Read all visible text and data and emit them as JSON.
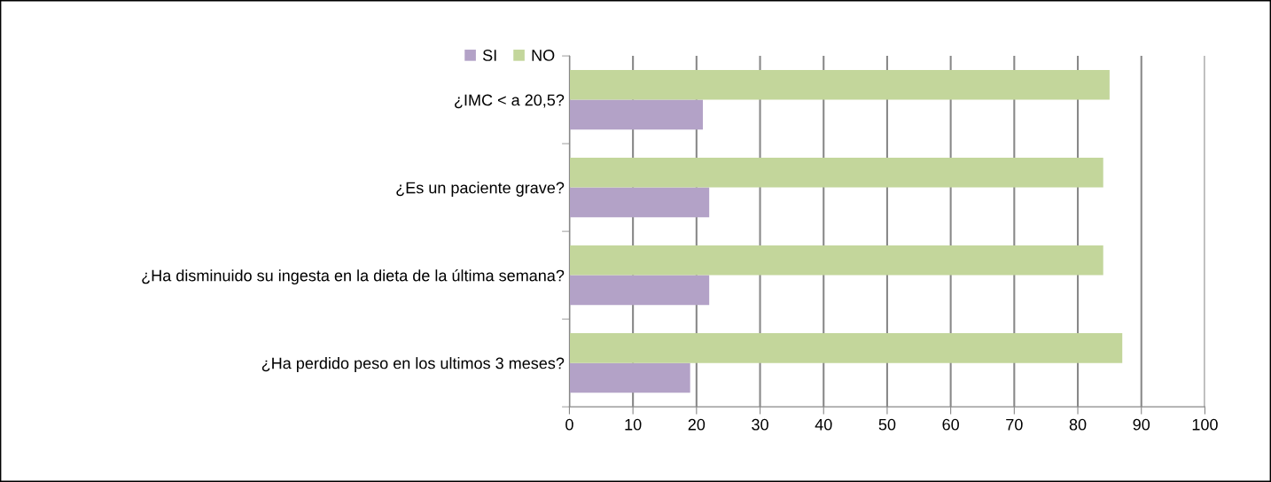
{
  "chart_data": {
    "type": "bar",
    "orientation": "horizontal",
    "categories": [
      "¿IMC < a 20,5?",
      "¿Es un paciente grave?",
      "¿Ha disminuido su ingesta en la dieta de la última semana?",
      "¿Ha perdido peso en los ultimos 3 meses?"
    ],
    "series": [
      {
        "name": "SI",
        "color": "#b3a2c7",
        "values": [
          21,
          22,
          22,
          19
        ]
      },
      {
        "name": "NO",
        "color": "#c3d69b",
        "values": [
          85,
          84,
          84,
          87
        ]
      }
    ],
    "xlim": [
      0,
      100
    ],
    "xticks": [
      0,
      10,
      20,
      30,
      40,
      50,
      60,
      70,
      80,
      90,
      100
    ],
    "grid": "x",
    "legend": "top left"
  }
}
